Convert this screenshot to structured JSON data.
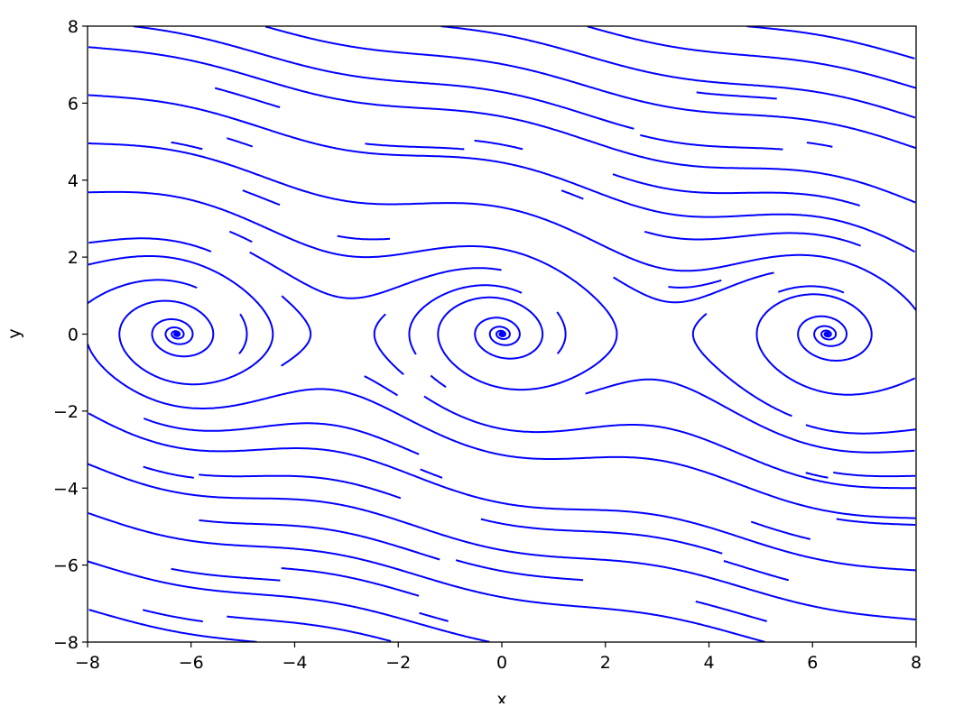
{
  "chart_data": {
    "type": "streamplot",
    "title": "",
    "xlabel": "x",
    "ylabel": "y",
    "xlim": [
      -8,
      8
    ],
    "ylim": [
      -8,
      8
    ],
    "xticks": [
      -8,
      -6,
      -4,
      -2,
      0,
      2,
      4,
      6,
      8
    ],
    "yticks": [
      -8,
      -6,
      -4,
      -2,
      0,
      2,
      4,
      6,
      8
    ],
    "xtick_labels": [
      "−8",
      "−6",
      "−4",
      "−2",
      "0",
      "2",
      "4",
      "6",
      "8"
    ],
    "ytick_labels": [
      "−8",
      "−6",
      "−4",
      "−2",
      "0",
      "2",
      "4",
      "6",
      "8"
    ],
    "field": {
      "dx_dt": "y",
      "dy_dt": "-sin(x) - 0.25*y"
    },
    "fixed_points_spirals_x": [
      -6.283,
      0,
      6.283
    ],
    "line_color": "#0000ff",
    "grid": false,
    "legend": "none"
  }
}
